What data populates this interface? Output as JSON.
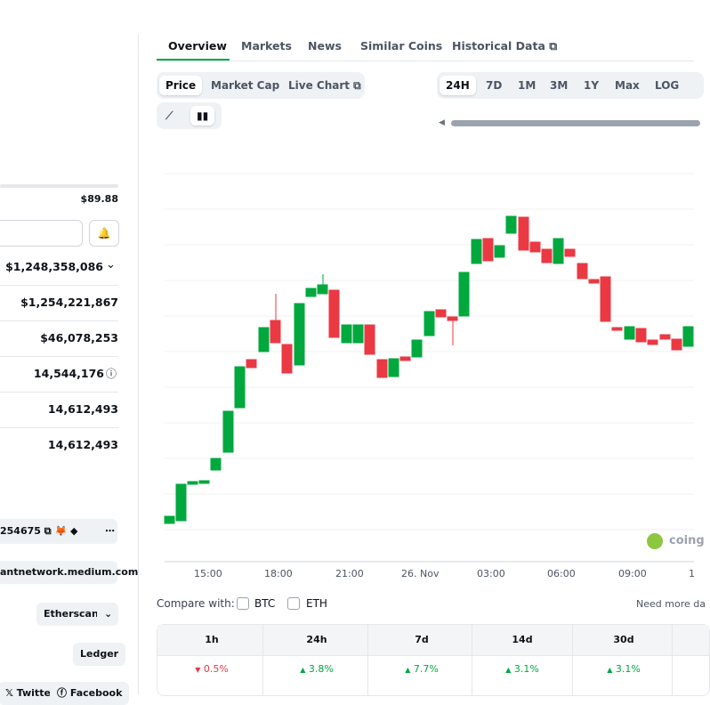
{
  "tabs": [
    "Overview",
    "Markets",
    "News",
    "Similar Coins",
    "Historical Data"
  ],
  "chart_view_tabs": [
    "Price",
    "Market Cap",
    "Live Chart"
  ],
  "ranges": [
    "24H",
    "7D",
    "1M",
    "3M",
    "1Y",
    "Max",
    "LOG"
  ],
  "x_axis_labels": [
    "15:00",
    "18:00",
    "21:00",
    "26. Nov",
    "03:00",
    "06:00",
    "09:00",
    "1"
  ],
  "watermark": "coing",
  "stats": {
    "price": "$89.88",
    "rows": [
      "$1,248,358,086",
      "$1,254,221,867",
      "$46,078,253",
      "14,544,176",
      "14,612,493",
      "14,612,493"
    ]
  },
  "contract": "254675",
  "links": [
    "antnetwork.medium.com",
    "Etherscan",
    "Ledger"
  ],
  "socials": [
    "Twitter",
    "Facebook"
  ],
  "compare": {
    "label": "Compare with:",
    "options": [
      "BTC",
      "ETH"
    ],
    "more": "Need more da"
  },
  "performance": {
    "headers": [
      "1h",
      "24h",
      "7d",
      "14d",
      "30d"
    ],
    "values": [
      "0.5%",
      "3.8%",
      "7.7%",
      "3.1%",
      "3.1%"
    ]
  }
}
